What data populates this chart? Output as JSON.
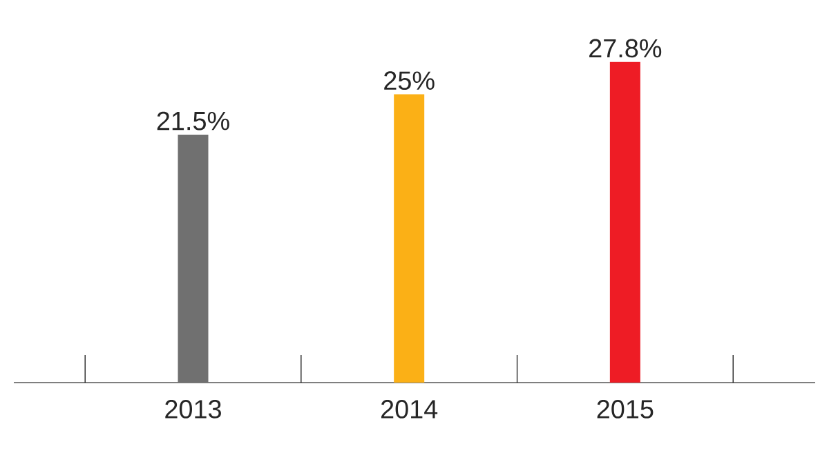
{
  "chart_data": {
    "type": "bar",
    "categories": [
      "2013",
      "2014",
      "2015"
    ],
    "values": [
      21.5,
      25,
      27.8
    ],
    "value_labels": [
      "21.5%",
      "25%",
      "27.8%"
    ],
    "colors": [
      "#707070",
      "#fbb016",
      "#ee1c25"
    ]
  }
}
